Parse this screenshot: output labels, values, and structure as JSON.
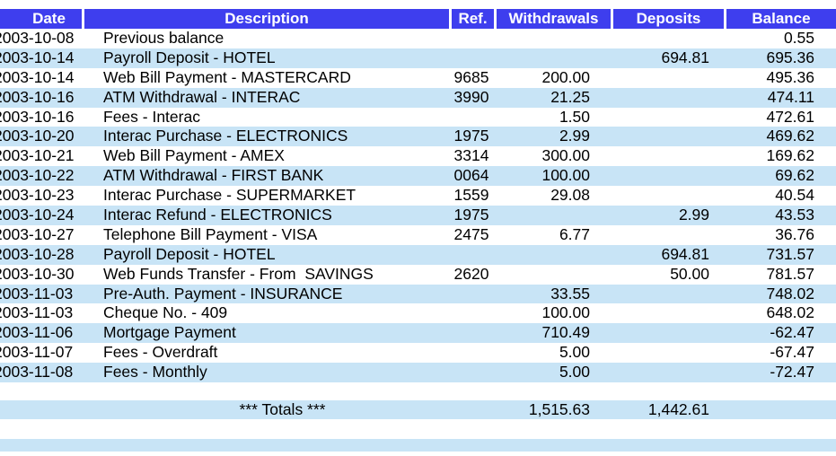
{
  "colors": {
    "header_bg": "#3E3EEE",
    "stripe_bg": "#C8E4F6",
    "page_bg": "#FFFFFF",
    "header_text": "#FFFFFF",
    "body_text": "#000000"
  },
  "table": {
    "columns": [
      "Date",
      "Description",
      "Ref.",
      "Withdrawals",
      "Deposits",
      "Balance"
    ]
  },
  "transactions": [
    {
      "date": "2003-10-08",
      "description": "Previous balance",
      "ref": "",
      "withdrawal": "",
      "deposit": "",
      "balance": "0.55"
    },
    {
      "date": "2003-10-14",
      "description": "Payroll Deposit - HOTEL",
      "ref": "",
      "withdrawal": "",
      "deposit": "694.81",
      "balance": "695.36"
    },
    {
      "date": "2003-10-14",
      "description": "Web Bill Payment - MASTERCARD",
      "ref": "9685",
      "withdrawal": "200.00",
      "deposit": "",
      "balance": "495.36"
    },
    {
      "date": "2003-10-16",
      "description": "ATM Withdrawal - INTERAC",
      "ref": "3990",
      "withdrawal": "21.25",
      "deposit": "",
      "balance": "474.11"
    },
    {
      "date": "2003-10-16",
      "description": "Fees - Interac",
      "ref": "",
      "withdrawal": "1.50",
      "deposit": "",
      "balance": "472.61"
    },
    {
      "date": "2003-10-20",
      "description": "Interac Purchase - ELECTRONICS",
      "ref": "1975",
      "withdrawal": "2.99",
      "deposit": "",
      "balance": "469.62"
    },
    {
      "date": "2003-10-21",
      "description": "Web Bill Payment - AMEX",
      "ref": "3314",
      "withdrawal": "300.00",
      "deposit": "",
      "balance": "169.62"
    },
    {
      "date": "2003-10-22",
      "description": "ATM Withdrawal - FIRST BANK",
      "ref": "0064",
      "withdrawal": "100.00",
      "deposit": "",
      "balance": "69.62"
    },
    {
      "date": "2003-10-23",
      "description": "Interac Purchase - SUPERMARKET",
      "ref": "1559",
      "withdrawal": "29.08",
      "deposit": "",
      "balance": "40.54"
    },
    {
      "date": "2003-10-24",
      "description": "Interac Refund - ELECTRONICS",
      "ref": "1975",
      "withdrawal": "",
      "deposit": "2.99",
      "balance": "43.53"
    },
    {
      "date": "2003-10-27",
      "description": "Telephone Bill Payment - VISA",
      "ref": "2475",
      "withdrawal": "6.77",
      "deposit": "",
      "balance": "36.76"
    },
    {
      "date": "2003-10-28",
      "description": "Payroll Deposit - HOTEL",
      "ref": "",
      "withdrawal": "",
      "deposit": "694.81",
      "balance": "731.57"
    },
    {
      "date": "2003-10-30",
      "description": "Web Funds Transfer - From  SAVINGS",
      "ref": "2620",
      "withdrawal": "",
      "deposit": "50.00",
      "balance": "781.57"
    },
    {
      "date": "2003-11-03",
      "description": "Pre-Auth. Payment - INSURANCE",
      "ref": "",
      "withdrawal": "33.55",
      "deposit": "",
      "balance": "748.02"
    },
    {
      "date": "2003-11-03",
      "description": "Cheque No. - 409",
      "ref": "",
      "withdrawal": "100.00",
      "deposit": "",
      "balance": "648.02"
    },
    {
      "date": "2003-11-06",
      "description": "Mortgage Payment",
      "ref": "",
      "withdrawal": "710.49",
      "deposit": "",
      "balance": "-62.47"
    },
    {
      "date": "2003-11-07",
      "description": "Fees - Overdraft",
      "ref": "",
      "withdrawal": "5.00",
      "deposit": "",
      "balance": "-67.47"
    },
    {
      "date": "2003-11-08",
      "description": "Fees - Monthly",
      "ref": "",
      "withdrawal": "5.00",
      "deposit": "",
      "balance": "-72.47"
    }
  ],
  "totals": {
    "label": "*** Totals ***",
    "withdrawals": "1,515.63",
    "deposits": "1,442.61"
  }
}
